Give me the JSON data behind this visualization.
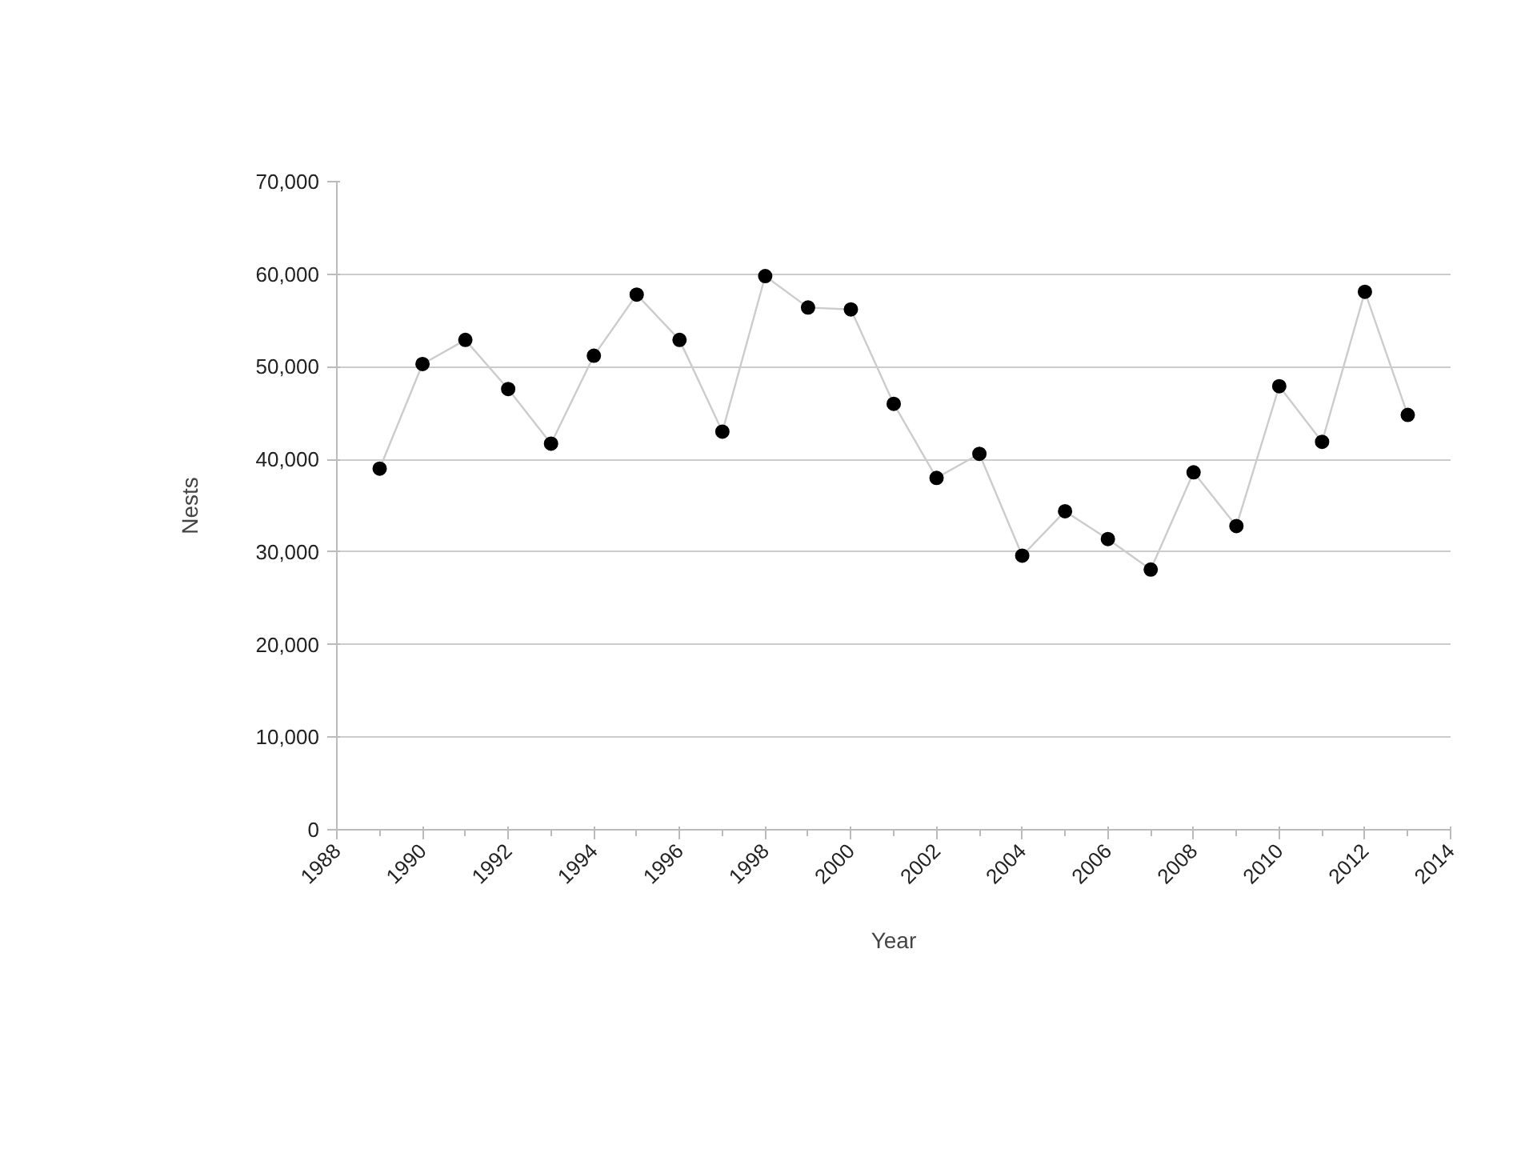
{
  "chart_data": {
    "type": "line",
    "xlabel": "Year",
    "ylabel": "Nests",
    "x": [
      1989,
      1990,
      1991,
      1992,
      1993,
      1994,
      1995,
      1996,
      1997,
      1998,
      1999,
      2000,
      2001,
      2002,
      2003,
      2004,
      2005,
      2006,
      2007,
      2008,
      2009,
      2010,
      2011,
      2012,
      2013
    ],
    "series": [
      {
        "color": "#cccccc",
        "values": [
          39000,
          50300,
          52900,
          47600,
          41700,
          51200,
          57800,
          52900,
          43000,
          59800,
          56400,
          56200,
          46000,
          38000,
          40600,
          29600,
          34400,
          31400,
          28100,
          38600,
          32800,
          47900,
          41900,
          58100,
          44800
        ]
      }
    ],
    "xlim": [
      1988,
      2014
    ],
    "xticks": [
      1988,
      1990,
      1992,
      1994,
      1996,
      1998,
      2000,
      2002,
      2004,
      2006,
      2008,
      2010,
      2012,
      2014
    ],
    "ylim": [
      0,
      70000
    ],
    "yticks": [
      {
        "value": 0,
        "label": "0"
      },
      {
        "value": 10000,
        "label": "10,000"
      },
      {
        "value": 20000,
        "label": "20,000"
      },
      {
        "value": 30000,
        "label": "30,000"
      },
      {
        "value": 40000,
        "label": "40,000"
      },
      {
        "value": 50000,
        "label": "50,000"
      },
      {
        "value": 60000,
        "label": "60,000"
      },
      {
        "value": 70000,
        "label": "70,000"
      }
    ],
    "grid": "y",
    "marker": "circle",
    "line_style": "solid"
  }
}
